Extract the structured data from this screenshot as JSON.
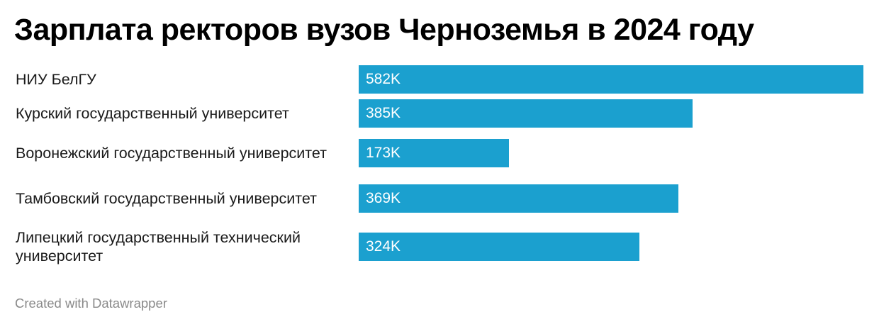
{
  "chart_data": {
    "type": "bar",
    "orientation": "horizontal",
    "title": "Зарплата ректоров вузов Черноземья в 2024 году",
    "categories": [
      "НИУ БелГУ",
      "Курский государственный университет",
      "Воронежский государственный университет",
      "Тамбовский государственный университет",
      "Липецкий государственный технический университет"
    ],
    "values": [
      582000,
      385000,
      173000,
      369000,
      324000
    ],
    "value_labels": [
      "582K",
      "385K",
      "173K",
      "369K",
      "324K"
    ],
    "xlim": [
      0,
      582000
    ],
    "grid": false,
    "legend": "none",
    "colors": {
      "bar": "#1ba0cf",
      "label_text": "#ffffff"
    }
  },
  "footer": {
    "credit": "Created with Datawrapper"
  }
}
